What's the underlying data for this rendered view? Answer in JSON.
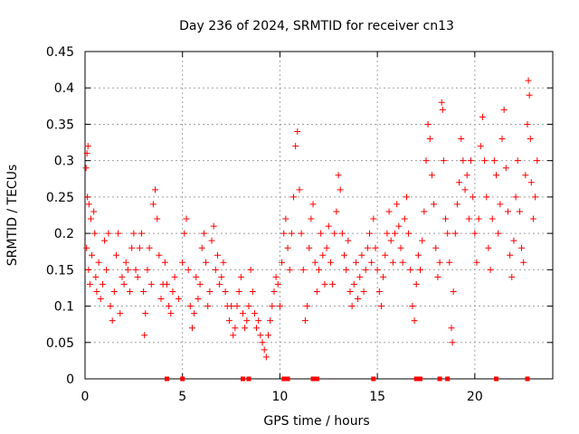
{
  "chart_data": {
    "type": "scatter",
    "title": "Day 236 of 2024, SRMTID for receiver cn13",
    "xlabel": "GPS time / hours",
    "ylabel": "SRMTID / TECUs",
    "xlim": [
      0,
      24
    ],
    "ylim": [
      0,
      0.45
    ],
    "x_ticks": [
      0,
      5,
      10,
      15,
      20
    ],
    "x_tick_labels": [
      "0",
      "5",
      "10",
      "15",
      "20"
    ],
    "y_ticks": [
      0,
      0.05,
      0.1,
      0.15,
      0.2,
      0.25,
      0.3,
      0.35,
      0.4,
      0.45
    ],
    "y_tick_labels": [
      "0",
      "0.05",
      "0.1",
      "0.15",
      "0.2",
      "0.25",
      "0.3",
      "0.35",
      "0.4",
      "0.45"
    ],
    "grid": true,
    "marker": "plus",
    "series_color": "#ff0000",
    "series": [
      {
        "name": "SRMTID",
        "points": [
          [
            0.05,
            0.29
          ],
          [
            0.1,
            0.31
          ],
          [
            0.15,
            0.32
          ],
          [
            0.12,
            0.25
          ],
          [
            0.2,
            0.24
          ],
          [
            0.3,
            0.22
          ],
          [
            0.08,
            0.18
          ],
          [
            0.18,
            0.15
          ],
          [
            0.25,
            0.13
          ],
          [
            0.35,
            0.17
          ],
          [
            0.45,
            0.23
          ],
          [
            0.5,
            0.2
          ],
          [
            0.55,
            0.14
          ],
          [
            0.6,
            0.12
          ],
          [
            0.7,
            0.16
          ],
          [
            0.8,
            0.11
          ],
          [
            0.9,
            0.13
          ],
          [
            1.0,
            0.19
          ],
          [
            1.1,
            0.15
          ],
          [
            1.2,
            0.2
          ],
          [
            1.3,
            0.1
          ],
          [
            1.4,
            0.08
          ],
          [
            1.5,
            0.12
          ],
          [
            1.6,
            0.17
          ],
          [
            1.7,
            0.2
          ],
          [
            1.8,
            0.09
          ],
          [
            1.9,
            0.14
          ],
          [
            2.0,
            0.13
          ],
          [
            2.1,
            0.16
          ],
          [
            2.2,
            0.15
          ],
          [
            2.3,
            0.12
          ],
          [
            2.4,
            0.18
          ],
          [
            2.5,
            0.2
          ],
          [
            2.6,
            0.15
          ],
          [
            2.7,
            0.14
          ],
          [
            2.8,
            0.18
          ],
          [
            2.9,
            0.2
          ],
          [
            3.0,
            0.12
          ],
          [
            3.05,
            0.06
          ],
          [
            3.1,
            0.09
          ],
          [
            3.2,
            0.15
          ],
          [
            3.3,
            0.18
          ],
          [
            3.4,
            0.13
          ],
          [
            3.5,
            0.24
          ],
          [
            3.6,
            0.26
          ],
          [
            3.7,
            0.22
          ],
          [
            3.8,
            0.17
          ],
          [
            3.9,
            0.11
          ],
          [
            4.0,
            0.13
          ],
          [
            4.1,
            0.16
          ],
          [
            4.2,
            0.13
          ],
          [
            4.3,
            0.1
          ],
          [
            4.4,
            0.09
          ],
          [
            4.5,
            0.12
          ],
          [
            4.6,
            0.14
          ],
          [
            4.8,
            0.11
          ],
          [
            5.0,
            0.16
          ],
          [
            5.1,
            0.2
          ],
          [
            5.2,
            0.22
          ],
          [
            5.3,
            0.15
          ],
          [
            5.4,
            0.1
          ],
          [
            5.5,
            0.07
          ],
          [
            5.6,
            0.09
          ],
          [
            5.7,
            0.14
          ],
          [
            5.8,
            0.11
          ],
          [
            5.9,
            0.13
          ],
          [
            6.0,
            0.18
          ],
          [
            6.1,
            0.2
          ],
          [
            6.2,
            0.16
          ],
          [
            6.3,
            0.1
          ],
          [
            6.4,
            0.12
          ],
          [
            6.5,
            0.19
          ],
          [
            6.6,
            0.21
          ],
          [
            6.7,
            0.15
          ],
          [
            6.8,
            0.17
          ],
          [
            6.9,
            0.13
          ],
          [
            7.0,
            0.14
          ],
          [
            7.1,
            0.16
          ],
          [
            7.2,
            0.12
          ],
          [
            7.3,
            0.1
          ],
          [
            7.4,
            0.08
          ],
          [
            7.5,
            0.1
          ],
          [
            7.6,
            0.06
          ],
          [
            7.7,
            0.07
          ],
          [
            7.8,
            0.1
          ],
          [
            7.9,
            0.12
          ],
          [
            8.0,
            0.14
          ],
          [
            8.1,
            0.09
          ],
          [
            8.2,
            0.07
          ],
          [
            8.3,
            0.08
          ],
          [
            8.4,
            0.1
          ],
          [
            8.5,
            0.15
          ],
          [
            8.6,
            0.12
          ],
          [
            8.7,
            0.09
          ],
          [
            8.8,
            0.07
          ],
          [
            8.9,
            0.08
          ],
          [
            9.0,
            0.06
          ],
          [
            9.1,
            0.05
          ],
          [
            9.2,
            0.04
          ],
          [
            9.3,
            0.03
          ],
          [
            9.4,
            0.06
          ],
          [
            9.5,
            0.08
          ],
          [
            9.6,
            0.1
          ],
          [
            9.7,
            0.12
          ],
          [
            9.8,
            0.14
          ],
          [
            9.9,
            0.13
          ],
          [
            10.0,
            0.1
          ],
          [
            10.1,
            0.16
          ],
          [
            10.2,
            0.2
          ],
          [
            10.3,
            0.22
          ],
          [
            10.4,
            0.18
          ],
          [
            10.5,
            0.15
          ],
          [
            10.6,
            0.2
          ],
          [
            10.7,
            0.25
          ],
          [
            10.8,
            0.32
          ],
          [
            10.9,
            0.34
          ],
          [
            11.0,
            0.26
          ],
          [
            11.1,
            0.2
          ],
          [
            11.2,
            0.15
          ],
          [
            11.3,
            0.08
          ],
          [
            11.4,
            0.1
          ],
          [
            11.5,
            0.18
          ],
          [
            11.6,
            0.22
          ],
          [
            11.7,
            0.24
          ],
          [
            11.8,
            0.16
          ],
          [
            11.9,
            0.12
          ],
          [
            12.0,
            0.15
          ],
          [
            12.1,
            0.2
          ],
          [
            12.2,
            0.17
          ],
          [
            12.3,
            0.13
          ],
          [
            12.4,
            0.18
          ],
          [
            12.5,
            0.21
          ],
          [
            12.6,
            0.16
          ],
          [
            12.7,
            0.13
          ],
          [
            12.8,
            0.2
          ],
          [
            12.9,
            0.23
          ],
          [
            13.0,
            0.28
          ],
          [
            13.1,
            0.26
          ],
          [
            13.2,
            0.2
          ],
          [
            13.3,
            0.17
          ],
          [
            13.4,
            0.15
          ],
          [
            13.5,
            0.19
          ],
          [
            13.6,
            0.12
          ],
          [
            13.7,
            0.1
          ],
          [
            13.8,
            0.13
          ],
          [
            13.9,
            0.16
          ],
          [
            14.0,
            0.11
          ],
          [
            14.1,
            0.14
          ],
          [
            14.2,
            0.17
          ],
          [
            14.3,
            0.12
          ],
          [
            14.4,
            0.15
          ],
          [
            14.5,
            0.18
          ],
          [
            14.6,
            0.2
          ],
          [
            14.7,
            0.16
          ],
          [
            14.8,
            0.22
          ],
          [
            14.9,
            0.18
          ],
          [
            15.0,
            0.15
          ],
          [
            15.1,
            0.12
          ],
          [
            15.2,
            0.1
          ],
          [
            15.3,
            0.14
          ],
          [
            15.4,
            0.17
          ],
          [
            15.5,
            0.2
          ],
          [
            15.6,
            0.23
          ],
          [
            15.7,
            0.19
          ],
          [
            15.8,
            0.16
          ],
          [
            15.9,
            0.2
          ],
          [
            16.0,
            0.24
          ],
          [
            16.1,
            0.21
          ],
          [
            16.2,
            0.18
          ],
          [
            16.3,
            0.16
          ],
          [
            16.4,
            0.22
          ],
          [
            16.5,
            0.25
          ],
          [
            16.6,
            0.2
          ],
          [
            16.7,
            0.15
          ],
          [
            16.8,
            0.1
          ],
          [
            16.9,
            0.08
          ],
          [
            17.0,
            0.13
          ],
          [
            17.1,
            0.17
          ],
          [
            17.2,
            0.15
          ],
          [
            17.3,
            0.19
          ],
          [
            17.4,
            0.23
          ],
          [
            17.5,
            0.3
          ],
          [
            17.6,
            0.35
          ],
          [
            17.7,
            0.33
          ],
          [
            17.8,
            0.28
          ],
          [
            17.9,
            0.24
          ],
          [
            18.0,
            0.18
          ],
          [
            18.1,
            0.14
          ],
          [
            18.2,
            0.16
          ],
          [
            18.3,
            0.38
          ],
          [
            18.35,
            0.37
          ],
          [
            18.4,
            0.3
          ],
          [
            18.5,
            0.22
          ],
          [
            18.6,
            0.2
          ],
          [
            18.7,
            0.16
          ],
          [
            18.8,
            0.07
          ],
          [
            18.85,
            0.05
          ],
          [
            18.9,
            0.12
          ],
          [
            19.0,
            0.2
          ],
          [
            19.1,
            0.24
          ],
          [
            19.2,
            0.27
          ],
          [
            19.3,
            0.33
          ],
          [
            19.4,
            0.3
          ],
          [
            19.5,
            0.26
          ],
          [
            19.6,
            0.28
          ],
          [
            19.7,
            0.22
          ],
          [
            19.8,
            0.3
          ],
          [
            19.9,
            0.25
          ],
          [
            20.0,
            0.2
          ],
          [
            20.1,
            0.16
          ],
          [
            20.2,
            0.22
          ],
          [
            20.3,
            0.32
          ],
          [
            20.4,
            0.36
          ],
          [
            20.5,
            0.3
          ],
          [
            20.6,
            0.25
          ],
          [
            20.7,
            0.18
          ],
          [
            20.8,
            0.15
          ],
          [
            20.9,
            0.22
          ],
          [
            21.0,
            0.3
          ],
          [
            21.1,
            0.28
          ],
          [
            21.2,
            0.2
          ],
          [
            21.3,
            0.24
          ],
          [
            21.4,
            0.33
          ],
          [
            21.5,
            0.37
          ],
          [
            21.6,
            0.29
          ],
          [
            21.7,
            0.23
          ],
          [
            21.8,
            0.17
          ],
          [
            21.9,
            0.14
          ],
          [
            22.0,
            0.19
          ],
          [
            22.1,
            0.25
          ],
          [
            22.2,
            0.3
          ],
          [
            22.3,
            0.23
          ],
          [
            22.4,
            0.18
          ],
          [
            22.5,
            0.16
          ],
          [
            22.6,
            0.28
          ],
          [
            22.7,
            0.35
          ],
          [
            22.75,
            0.41
          ],
          [
            22.8,
            0.39
          ],
          [
            22.85,
            0.33
          ],
          [
            22.9,
            0.27
          ],
          [
            23.0,
            0.22
          ],
          [
            23.1,
            0.25
          ],
          [
            23.2,
            0.3
          ]
        ]
      }
    ],
    "gap_markers_x": [
      4.2,
      5.0,
      8.1,
      8.4,
      10.2,
      10.4,
      11.7,
      11.9,
      14.8,
      17.0,
      17.2,
      18.2,
      18.6,
      21.1,
      22.7
    ]
  }
}
